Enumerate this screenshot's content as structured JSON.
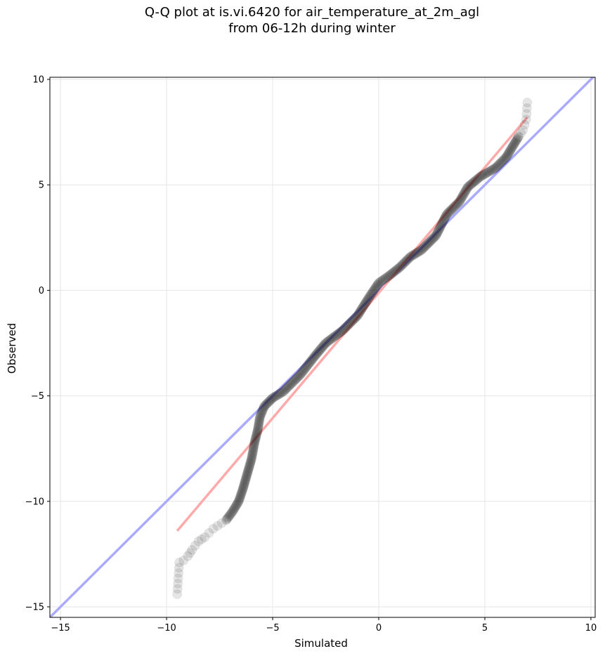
{
  "chart_data": {
    "type": "scatter",
    "title_lines": [
      "Q-Q plot at is.vi.6420 for air_temperature_at_2m_agl",
      "from 06-12h during winter"
    ],
    "xlabel": "Simulated",
    "ylabel": "Observed",
    "xlim": [
      -15.5,
      10.2
    ],
    "ylim": [
      -15.5,
      10.1
    ],
    "xticks": [
      -15,
      -10,
      -5,
      0,
      5,
      10
    ],
    "yticks": [
      -15,
      -10,
      -5,
      0,
      5,
      10
    ],
    "grid": true,
    "reference_line": {
      "description": "1:1 line",
      "color": "#aaaaff",
      "from": [
        -15.5,
        -15.5
      ],
      "to": [
        10.2,
        10.2
      ]
    },
    "fit_line": {
      "color": "#ffaaaa",
      "from": [
        -9.5,
        -11.4
      ],
      "to": [
        7.0,
        8.2
      ]
    },
    "point_color": "#000000",
    "anchors": [
      [
        -9.5,
        -14.4
      ],
      [
        -9.4,
        -12.9
      ],
      [
        -9.2,
        -12.8
      ],
      [
        -9.0,
        -12.6
      ],
      [
        -8.8,
        -12.3
      ],
      [
        -8.5,
        -11.9
      ],
      [
        -8.2,
        -11.7
      ],
      [
        -7.8,
        -11.3
      ],
      [
        -7.2,
        -10.9
      ],
      [
        -6.9,
        -10.5
      ],
      [
        -6.6,
        -10.0
      ],
      [
        -6.4,
        -9.4
      ],
      [
        -6.2,
        -8.7
      ],
      [
        -6.0,
        -8.0
      ],
      [
        -5.85,
        -7.2
      ],
      [
        -5.7,
        -6.6
      ],
      [
        -5.6,
        -6.0
      ],
      [
        -5.4,
        -5.5
      ],
      [
        -5.0,
        -5.1
      ],
      [
        -4.5,
        -4.8
      ],
      [
        -3.7,
        -4.0
      ],
      [
        -3.0,
        -3.1
      ],
      [
        -2.5,
        -2.5
      ],
      [
        -1.7,
        -1.9
      ],
      [
        -1.0,
        -1.2
      ],
      [
        -0.5,
        -0.4
      ],
      [
        0.0,
        0.35
      ],
      [
        0.5,
        0.7
      ],
      [
        1.0,
        1.1
      ],
      [
        1.5,
        1.6
      ],
      [
        2.0,
        1.9
      ],
      [
        2.7,
        2.6
      ],
      [
        3.2,
        3.6
      ],
      [
        3.8,
        4.2
      ],
      [
        4.2,
        4.9
      ],
      [
        4.8,
        5.4
      ],
      [
        5.5,
        5.8
      ],
      [
        6.0,
        6.3
      ],
      [
        6.3,
        6.8
      ],
      [
        6.6,
        7.3
      ],
      [
        6.8,
        7.6
      ],
      [
        6.95,
        8.1
      ],
      [
        7.0,
        8.9
      ]
    ]
  }
}
